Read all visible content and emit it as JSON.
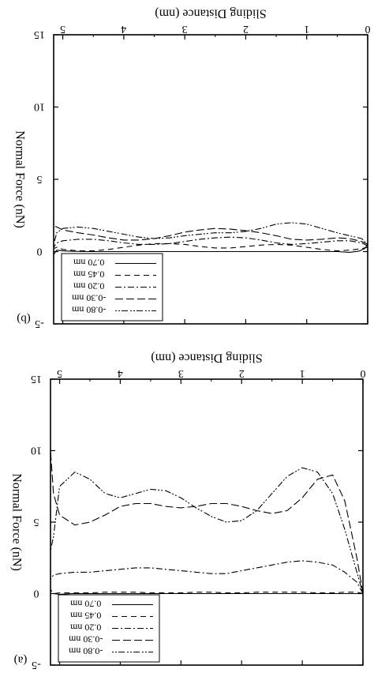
{
  "chart_data": [
    {
      "type": "line",
      "panel_label": "(b)",
      "xlabel": "Sliding Distance (nm)",
      "ylabel": "Normal Force (nN)",
      "xlim": [
        0,
        5.15
      ],
      "ylim": [
        -5,
        15
      ],
      "x_ticks": [
        "0",
        "1",
        "2",
        "3",
        "4",
        "5"
      ],
      "y_ticks": [
        "-5",
        "0",
        "5",
        "10",
        "15"
      ],
      "legend_position": "bottom-left (as printed, figure rotated 180°)",
      "series": [
        {
          "name": "-0.80 nm",
          "dash": "2 2 2 2 8 3",
          "x": [
            0.0,
            0.1,
            0.3,
            0.5,
            0.75,
            1.0,
            1.25,
            1.5,
            1.75,
            2.0,
            2.25,
            2.5,
            2.75,
            3.0,
            3.25,
            3.5,
            3.75,
            4.0,
            4.25,
            4.5,
            4.75,
            5.0,
            5.1,
            5.15
          ],
          "y": [
            0.5,
            0.9,
            1.1,
            1.3,
            1.6,
            1.9,
            2.0,
            1.9,
            1.6,
            1.4,
            1.3,
            1.3,
            1.2,
            1.1,
            0.95,
            0.9,
            1.0,
            1.2,
            1.4,
            1.6,
            1.7,
            1.6,
            1.3,
            0.5
          ]
        },
        {
          "name": "-0.30 nm",
          "dash": "10 4",
          "x": [
            0.0,
            0.1,
            0.3,
            0.5,
            0.75,
            1.0,
            1.25,
            1.5,
            1.75,
            2.0,
            2.25,
            2.5,
            2.75,
            3.0,
            3.25,
            3.5,
            3.75,
            4.0,
            4.25,
            4.5,
            4.75,
            5.0,
            5.1,
            5.15
          ],
          "y": [
            0.5,
            0.7,
            0.9,
            0.95,
            0.85,
            0.8,
            0.85,
            1.1,
            1.3,
            1.45,
            1.55,
            1.6,
            1.5,
            1.35,
            1.1,
            0.9,
            0.8,
            0.8,
            0.95,
            1.15,
            1.3,
            1.5,
            1.7,
            1.8
          ]
        },
        {
          "name": "0.20 nm",
          "dash": "8 3 2 3",
          "x": [
            0.0,
            0.1,
            0.3,
            0.5,
            0.75,
            1.0,
            1.25,
            1.5,
            1.75,
            2.0,
            2.25,
            2.5,
            2.75,
            3.0,
            3.25,
            3.5,
            3.75,
            4.0,
            4.25,
            4.5,
            4.75,
            5.0,
            5.1,
            5.15
          ],
          "y": [
            0.4,
            0.6,
            0.75,
            0.75,
            0.65,
            0.55,
            0.5,
            0.6,
            0.8,
            0.95,
            1.0,
            0.95,
            0.85,
            0.7,
            0.55,
            0.5,
            0.5,
            0.6,
            0.75,
            0.85,
            0.85,
            0.75,
            0.6,
            0.3
          ]
        },
        {
          "name": "0.45 nm",
          "dash": "7 5",
          "x": [
            0.0,
            0.1,
            0.3,
            0.5,
            0.75,
            1.0,
            1.25,
            1.5,
            1.75,
            2.0,
            2.25,
            2.5,
            2.75,
            3.0,
            3.25,
            3.5,
            3.75,
            4.0,
            4.25,
            4.5,
            4.75,
            5.0,
            5.1,
            5.15
          ],
          "y": [
            0.3,
            0.2,
            0.1,
            0.05,
            0.15,
            0.3,
            0.45,
            0.5,
            0.45,
            0.35,
            0.25,
            0.25,
            0.35,
            0.5,
            0.55,
            0.55,
            0.45,
            0.3,
            0.15,
            0.05,
            0.05,
            0.15,
            0.3,
            0.2
          ]
        },
        {
          "name": "0.70 nm",
          "dash": "",
          "x": [
            0.0,
            0.05,
            0.15,
            0.3,
            0.5,
            1.0,
            2.0,
            3.0,
            4.0,
            4.6,
            4.85,
            5.0,
            5.1,
            5.15
          ],
          "y": [
            0.5,
            0.2,
            0.02,
            -0.05,
            0.0,
            0.0,
            0.0,
            0.0,
            0.0,
            0.0,
            0.02,
            0.05,
            0.1,
            -0.2
          ]
        }
      ]
    },
    {
      "type": "line",
      "panel_label": "(a)",
      "xlabel": "Sliding Distance (nm)",
      "ylabel": "Normal Force (nN)",
      "xlim": [
        0,
        5.15
      ],
      "ylim": [
        -5,
        15
      ],
      "x_ticks": [
        "0",
        "1",
        "2",
        "3",
        "4",
        "5"
      ],
      "y_ticks": [
        "-5",
        "0",
        "5",
        "10",
        "15"
      ],
      "legend_position": "bottom-left (as printed, figure rotated 180°)",
      "series": [
        {
          "name": "-0.80 nm",
          "dash": "2 2 2 2 8 3",
          "x": [
            0.0,
            0.1,
            0.3,
            0.5,
            0.75,
            1.0,
            1.25,
            1.5,
            1.75,
            2.0,
            2.25,
            2.5,
            2.75,
            3.0,
            3.25,
            3.5,
            3.75,
            4.0,
            4.25,
            4.5,
            4.75,
            5.0,
            5.1,
            5.15
          ],
          "y": [
            0.0,
            1.5,
            4.5,
            7.0,
            8.5,
            8.8,
            8.2,
            7.0,
            5.8,
            5.1,
            5.0,
            5.4,
            6.0,
            6.7,
            7.2,
            7.3,
            7.0,
            6.7,
            7.0,
            8.0,
            8.5,
            7.5,
            4.0,
            3.0
          ]
        },
        {
          "name": "-0.30 nm",
          "dash": "10 4",
          "x": [
            0.0,
            0.1,
            0.3,
            0.5,
            0.75,
            1.0,
            1.25,
            1.5,
            1.75,
            2.0,
            2.25,
            2.5,
            2.75,
            3.0,
            3.25,
            3.5,
            3.75,
            4.0,
            4.25,
            4.5,
            4.75,
            5.0,
            5.1,
            5.15
          ],
          "y": [
            0.0,
            2.5,
            6.5,
            8.3,
            8.0,
            6.7,
            5.8,
            5.6,
            5.8,
            6.1,
            6.3,
            6.3,
            6.1,
            6.0,
            6.1,
            6.3,
            6.3,
            6.1,
            5.5,
            5.0,
            4.8,
            5.5,
            7.0,
            10.0
          ]
        },
        {
          "name": "0.20 nm",
          "dash": "8 3 2 3",
          "x": [
            0.0,
            0.1,
            0.3,
            0.5,
            0.75,
            1.0,
            1.25,
            1.5,
            1.75,
            2.0,
            2.25,
            2.5,
            2.75,
            3.0,
            3.25,
            3.5,
            3.75,
            4.0,
            4.25,
            4.5,
            4.75,
            5.0,
            5.1,
            5.15
          ],
          "y": [
            0.0,
            0.8,
            1.5,
            2.0,
            2.2,
            2.3,
            2.2,
            2.0,
            1.8,
            1.6,
            1.4,
            1.4,
            1.5,
            1.6,
            1.7,
            1.8,
            1.8,
            1.7,
            1.6,
            1.5,
            1.5,
            1.4,
            1.3,
            1.0
          ]
        },
        {
          "name": "0.45 nm",
          "dash": "7 5",
          "x": [
            0.0,
            0.1,
            0.3,
            0.5,
            0.75,
            1.0,
            1.25,
            1.5,
            1.75,
            2.0,
            2.25,
            2.5,
            2.75,
            3.0,
            3.25,
            3.5,
            3.75,
            4.0,
            4.25,
            4.5,
            4.75,
            5.0,
            5.1,
            5.15
          ],
          "y": [
            0.0,
            0.1,
            0.1,
            0.05,
            0.05,
            0.1,
            0.1,
            0.1,
            0.1,
            0.05,
            0.05,
            0.1,
            0.1,
            0.05,
            0.05,
            0.05,
            0.1,
            0.1,
            0.1,
            0.05,
            0.05,
            0.05,
            0.0,
            0.3
          ]
        },
        {
          "name": "0.70 nm",
          "dash": "",
          "x": [
            0.0,
            0.5,
            1.0,
            2.0,
            3.0,
            4.0,
            4.8,
            5.0,
            5.1,
            5.15
          ],
          "y": [
            0.0,
            0.0,
            0.0,
            0.0,
            0.0,
            0.0,
            0.0,
            -0.05,
            0.0,
            0.0
          ]
        }
      ]
    }
  ]
}
